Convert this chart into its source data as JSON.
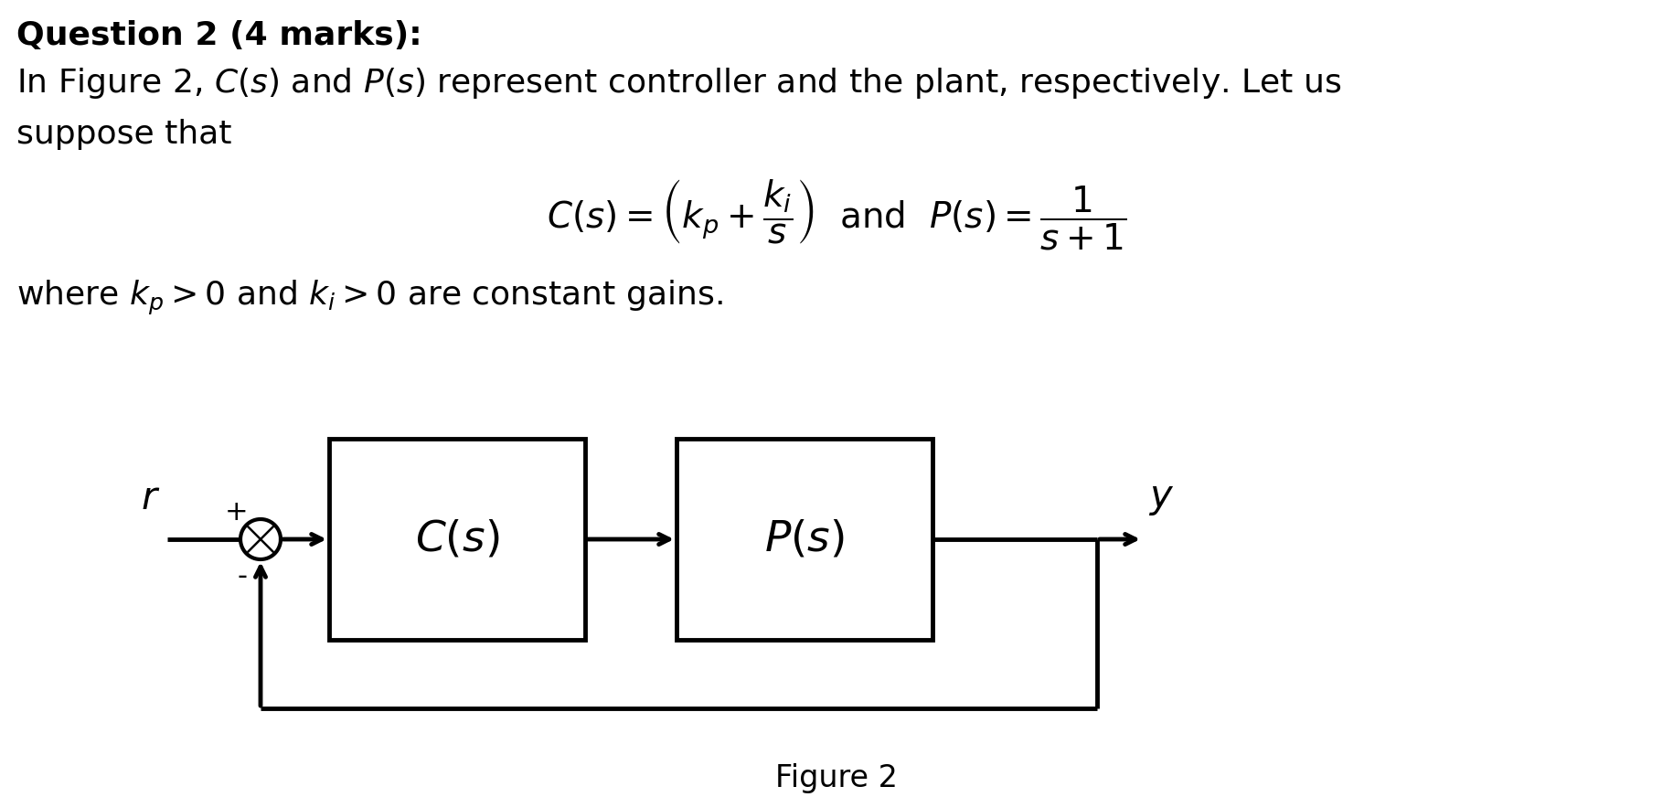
{
  "title_bold": "Question 2 (4 marks):",
  "line1": "In Figure 2, $C(s)$ and $P(s)$ represent controller and the plant, respectively. Let us",
  "line2": "suppose that",
  "equation": "$C(s) = \\left(k_p + \\dfrac{k_i}{s}\\right)$  and  $P(s) = \\dfrac{1}{s+1}$",
  "line3": "where $k_p > 0$ and $k_i > 0$ are constant gains.",
  "figure_label": "Figure 2",
  "background_color": "#ffffff",
  "text_color": "#000000",
  "block_linewidth": 3.5,
  "cs_label": "$C(s)$",
  "ps_label": "$P(s)$",
  "r_label": "$r$",
  "y_label": "$y$",
  "plus_label": "+",
  "minus_label": "-",
  "title_fontsize": 26,
  "body_fontsize": 26,
  "eq_fontsize": 28,
  "diagram_label_fontsize": 30,
  "block_label_fontsize": 34
}
